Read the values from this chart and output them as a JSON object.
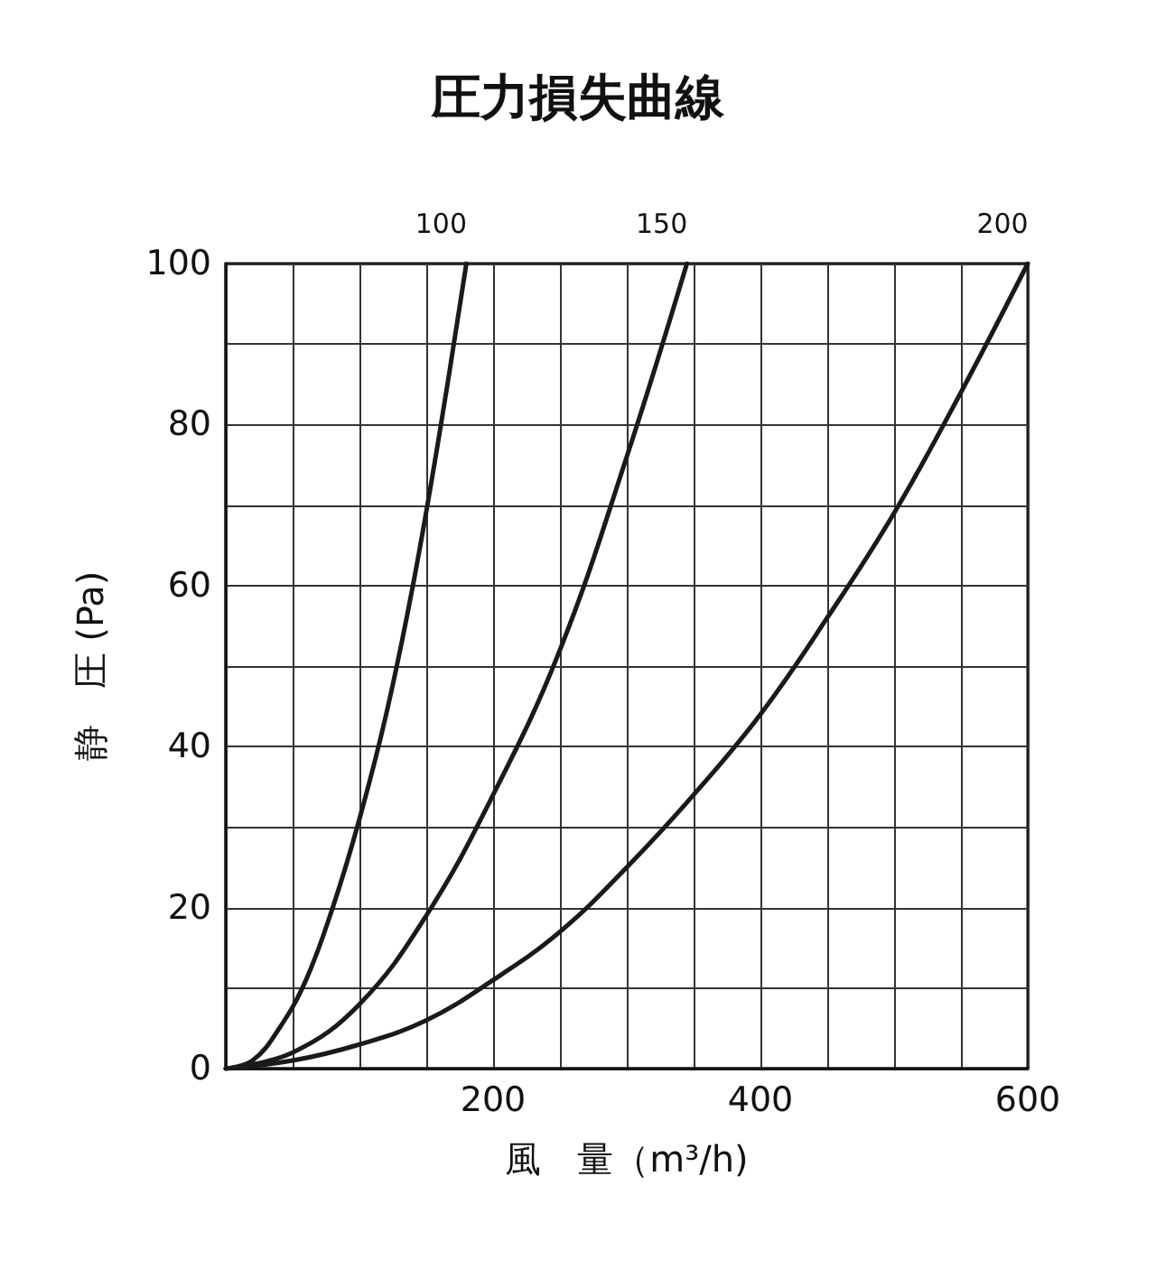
{
  "chart_data": {
    "type": "line",
    "title": "圧力損失曲線",
    "xlabel": "風　量（m³/h)",
    "ylabel": "静　圧 (Pa)",
    "xlim": [
      0,
      600
    ],
    "ylim": [
      0,
      100
    ],
    "xticks": [
      {
        "value": 0,
        "label": null
      },
      {
        "value": 50,
        "label": null
      },
      {
        "value": 100,
        "label": null
      },
      {
        "value": 150,
        "label": null
      },
      200,
      {
        "value": 250,
        "label": null
      },
      {
        "value": 300,
        "label": null
      },
      {
        "value": 350,
        "label": null
      },
      400,
      {
        "value": 450,
        "label": null
      },
      {
        "value": 500,
        "label": null
      },
      {
        "value": 550,
        "label": null
      },
      600
    ],
    "yticks": [
      0,
      {
        "value": 10,
        "label": null
      },
      20,
      {
        "value": 30,
        "label": null
      },
      40,
      {
        "value": 50,
        "label": null
      },
      60,
      {
        "value": 70,
        "label": null
      },
      80,
      {
        "value": 90,
        "label": null
      },
      100
    ],
    "grid": true,
    "legend": false,
    "marker": "none",
    "line_style": "solid",
    "series": [
      {
        "name": "100",
        "color": "#1a1a1a",
        "x": [
          0,
          20,
          40,
          60,
          80,
          100,
          120,
          140,
          160,
          180
        ],
        "values": [
          0,
          1,
          5,
          11,
          20,
          31,
          44,
          60,
          79,
          100
        ]
      },
      {
        "name": "150",
        "color": "#1a1a1a",
        "x": [
          0,
          50,
          100,
          150,
          200,
          250,
          300,
          345
        ],
        "values": [
          0,
          2,
          8,
          19,
          34,
          52,
          76,
          100
        ]
      },
      {
        "name": "200",
        "color": "#1a1a1a",
        "x": [
          0,
          50,
          100,
          150,
          200,
          250,
          300,
          350,
          400,
          450,
          500,
          550,
          600
        ],
        "values": [
          0,
          1,
          3,
          6,
          11,
          17,
          25,
          34,
          44,
          56,
          69,
          84,
          100
        ]
      }
    ]
  }
}
